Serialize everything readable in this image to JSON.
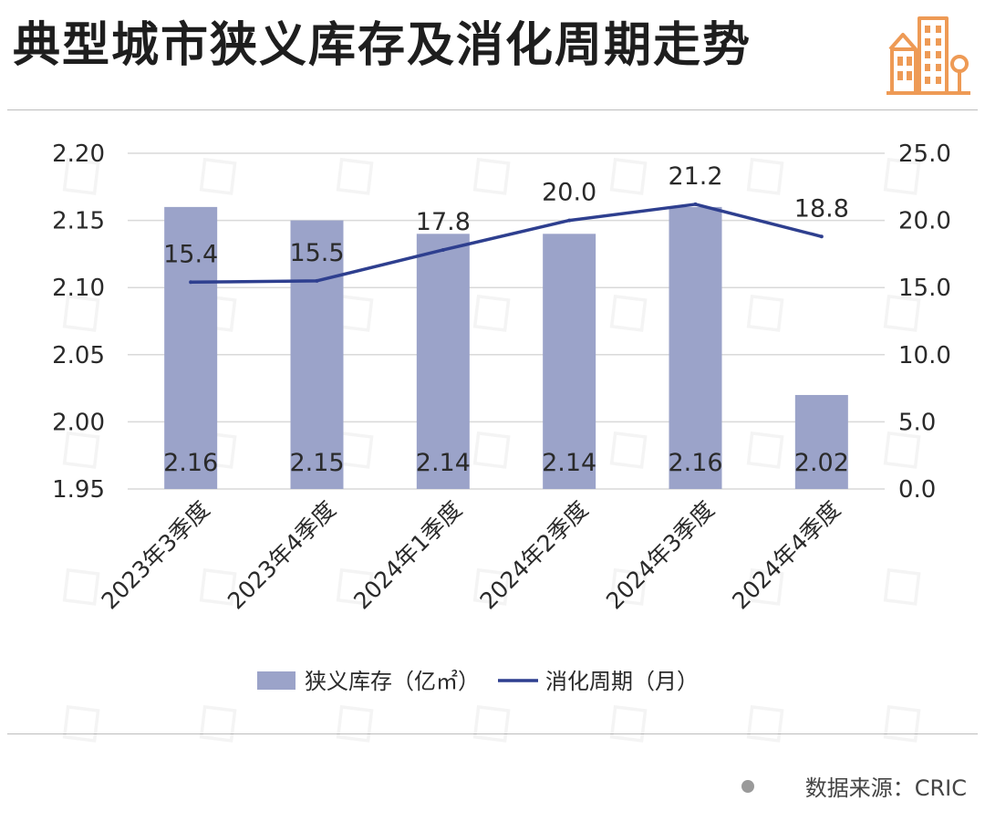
{
  "title": "典型城市狭义库存及消化周期走势",
  "source": "数据来源：CRIC",
  "colors": {
    "bar": "#9ba3c9",
    "line": "#2e3f8f",
    "grid": "#d9d9d9",
    "logo": "#ee9a55"
  },
  "icons": {
    "logo": "building-icon",
    "source_marker": "dot-icon"
  },
  "chart_data": {
    "type": "bar",
    "categories": [
      "2023年3季度",
      "2023年4季度",
      "2024年1季度",
      "2024年2季度",
      "2024年3季度",
      "2024年4季度"
    ],
    "series": [
      {
        "name": "狭义库存（亿㎡）",
        "type": "bar",
        "axis": "left",
        "values": [
          2.16,
          2.15,
          2.14,
          2.14,
          2.16,
          2.02
        ]
      },
      {
        "name": "消化周期（月）",
        "type": "line",
        "axis": "right",
        "values": [
          15.4,
          15.5,
          17.8,
          20.0,
          21.2,
          18.8
        ]
      }
    ],
    "y_left": {
      "lim": [
        1.95,
        2.2
      ],
      "ticks": [
        "1.95",
        "2.00",
        "2.05",
        "2.10",
        "2.15",
        "2.20"
      ]
    },
    "y_right": {
      "lim": [
        0,
        25
      ],
      "ticks": [
        "0.0",
        "5.0",
        "10.0",
        "15.0",
        "20.0",
        "25.0"
      ]
    },
    "grid": true,
    "legend": "bottom"
  }
}
